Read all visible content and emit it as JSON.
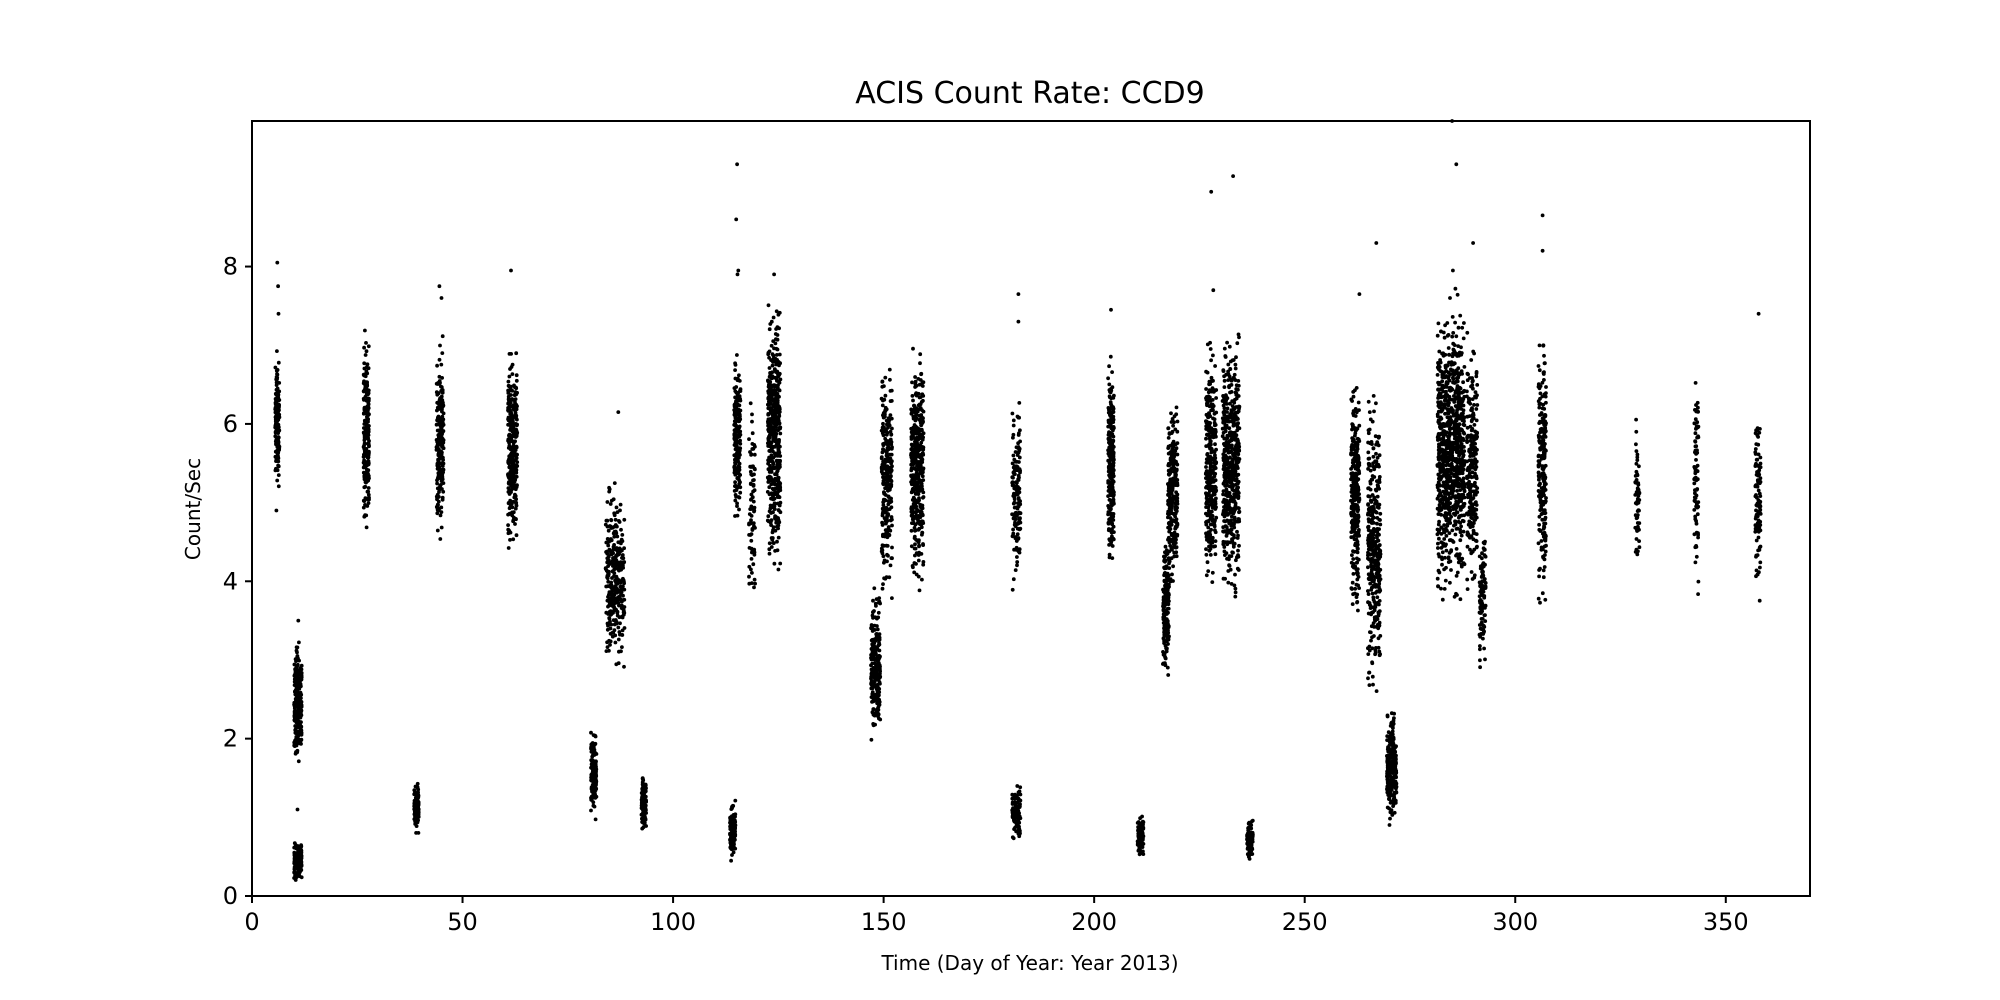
{
  "chart_data": {
    "type": "scatter",
    "title": "ACIS Count Rate: CCD9",
    "xlabel": "Time (Day of Year: Year 2013)",
    "ylabel": "Count/Sec",
    "xlim": [
      0,
      370
    ],
    "ylim": [
      0,
      9.85
    ],
    "xticks": [
      0,
      50,
      100,
      150,
      200,
      250,
      300,
      350
    ],
    "yticks": [
      0,
      2,
      4,
      6,
      8
    ],
    "grid": false,
    "marker_color": "#000000",
    "clusters": [
      {
        "x": [
          5.5,
          6.5
        ],
        "y_range": [
          5.1,
          7.0
        ],
        "points": 160,
        "outliers": [
          [
            6.0,
            8.05
          ],
          [
            6.2,
            7.75
          ],
          [
            5.8,
            4.9
          ],
          [
            6.3,
            7.4
          ]
        ]
      },
      {
        "x": [
          10.0,
          11.8
        ],
        "y_range": [
          1.6,
          3.3
        ],
        "points": 260,
        "outliers": [
          [
            11.0,
            3.5
          ],
          [
            10.8,
            1.1
          ]
        ]
      },
      {
        "x": [
          10.0,
          11.8
        ],
        "y_range": [
          0.15,
          0.75
        ],
        "points": 200,
        "outliers": []
      },
      {
        "x": [
          26.5,
          27.8
        ],
        "y_range": [
          4.3,
          7.4
        ],
        "points": 200,
        "outliers": []
      },
      {
        "x": [
          38.5,
          39.6
        ],
        "y_range": [
          0.75,
          1.5
        ],
        "points": 110,
        "outliers": []
      },
      {
        "x": [
          43.8,
          45.5
        ],
        "y_range": [
          4.3,
          7.2
        ],
        "points": 230,
        "outliers": [
          [
            44.5,
            7.75
          ],
          [
            45.0,
            7.6
          ]
        ]
      },
      {
        "x": [
          60.8,
          63.0
        ],
        "y_range": [
          4.2,
          7.2
        ],
        "points": 320,
        "outliers": [
          [
            61.5,
            7.95
          ]
        ]
      },
      {
        "x": [
          80.5,
          81.8
        ],
        "y_range": [
          0.9,
          2.2
        ],
        "points": 160,
        "outliers": []
      },
      {
        "x": [
          84.0,
          88.5
        ],
        "y_range": [
          2.6,
          5.5
        ],
        "points": 320,
        "outliers": [
          [
            87.0,
            6.15
          ]
        ]
      },
      {
        "x": [
          92.5,
          93.6
        ],
        "y_range": [
          0.75,
          1.6
        ],
        "points": 120,
        "outliers": []
      },
      {
        "x": [
          113.5,
          114.8
        ],
        "y_range": [
          0.4,
          1.3
        ],
        "points": 110,
        "outliers": []
      },
      {
        "x": [
          114.5,
          116.0
        ],
        "y_range": [
          4.6,
          7.1
        ],
        "points": 200,
        "outliers": [
          [
            115.2,
            9.3
          ],
          [
            115.0,
            8.6
          ],
          [
            115.5,
            7.95
          ],
          [
            115.3,
            7.9
          ]
        ]
      },
      {
        "x": [
          118.0,
          119.5
        ],
        "y_range": [
          3.3,
          6.7
        ],
        "points": 80,
        "outliers": []
      },
      {
        "x": [
          122.5,
          125.5
        ],
        "y_range": [
          3.9,
          7.7
        ],
        "points": 480,
        "outliers": [
          [
            124.0,
            7.9
          ]
        ]
      },
      {
        "x": [
          147.0,
          149.2
        ],
        "y_range": [
          1.7,
          4.1
        ],
        "points": 220,
        "outliers": []
      },
      {
        "x": [
          149.5,
          152.0
        ],
        "y_range": [
          3.6,
          7.1
        ],
        "points": 260,
        "outliers": []
      },
      {
        "x": [
          156.5,
          159.5
        ],
        "y_range": [
          3.7,
          7.1
        ],
        "points": 420,
        "outliers": []
      },
      {
        "x": [
          180.5,
          182.5
        ],
        "y_range": [
          3.7,
          6.5
        ],
        "points": 140,
        "outliers": [
          [
            182.0,
            7.65
          ],
          [
            182.0,
            7.3
          ]
        ]
      },
      {
        "x": [
          180.5,
          182.5
        ],
        "y_range": [
          0.6,
          1.5
        ],
        "points": 110,
        "outliers": []
      },
      {
        "x": [
          203.3,
          204.7
        ],
        "y_range": [
          3.9,
          7.1
        ],
        "points": 260,
        "outliers": [
          [
            204.0,
            7.45
          ]
        ]
      },
      {
        "x": [
          210.3,
          211.7
        ],
        "y_range": [
          0.45,
          1.1
        ],
        "points": 90,
        "outliers": []
      },
      {
        "x": [
          216.3,
          217.8
        ],
        "y_range": [
          2.55,
          4.7
        ],
        "points": 180,
        "outliers": []
      },
      {
        "x": [
          217.5,
          219.8
        ],
        "y_range": [
          3.7,
          6.6
        ],
        "points": 260,
        "outliers": []
      },
      {
        "x": [
          226.5,
          229.0
        ],
        "y_range": [
          3.6,
          7.3
        ],
        "points": 320,
        "outliers": [
          [
            227.8,
            8.95
          ],
          [
            228.3,
            7.7
          ]
        ]
      },
      {
        "x": [
          230.5,
          234.5
        ],
        "y_range": [
          3.5,
          7.4
        ],
        "points": 520,
        "outliers": [
          [
            233.0,
            9.15
          ]
        ]
      },
      {
        "x": [
          236.3,
          237.7
        ],
        "y_range": [
          0.4,
          1.05
        ],
        "points": 90,
        "outliers": []
      },
      {
        "x": [
          261.0,
          263.0
        ],
        "y_range": [
          3.3,
          6.9
        ],
        "points": 300,
        "outliers": [
          [
            263.0,
            7.65
          ]
        ]
      },
      {
        "x": [
          265.0,
          268.0
        ],
        "y_range": [
          2.1,
          6.8
        ],
        "points": 360,
        "outliers": [
          [
            267.0,
            8.3
          ]
        ]
      },
      {
        "x": [
          269.5,
          271.8
        ],
        "y_range": [
          0.85,
          2.4
        ],
        "points": 260,
        "outliers": []
      },
      {
        "x": [
          281.5,
          288.0
        ],
        "y_range": [
          3.5,
          7.8
        ],
        "points": 900,
        "outliers": [
          [
            286.0,
            9.3
          ],
          [
            285.0,
            9.85
          ],
          [
            285.2,
            7.95
          ],
          [
            284.5,
            7.6
          ]
        ]
      },
      {
        "x": [
          288.5,
          291.0
        ],
        "y_range": [
          3.5,
          7.3
        ],
        "points": 240,
        "outliers": [
          [
            290.0,
            8.3
          ]
        ]
      },
      {
        "x": [
          291.5,
          293.0
        ],
        "y_range": [
          2.7,
          4.8
        ],
        "points": 100,
        "outliers": []
      },
      {
        "x": [
          305.5,
          307.3
        ],
        "y_range": [
          3.5,
          7.5
        ],
        "points": 240,
        "outliers": [
          [
            306.5,
            8.65
          ],
          [
            306.5,
            8.2
          ]
        ]
      },
      {
        "x": [
          328.5,
          329.5
        ],
        "y_range": [
          3.9,
          6.4
        ],
        "points": 60,
        "outliers": []
      },
      {
        "x": [
          342.5,
          343.5
        ],
        "y_range": [
          3.5,
          7.05
        ],
        "points": 80,
        "outliers": []
      },
      {
        "x": [
          357.0,
          358.3
        ],
        "y_range": [
          3.55,
          6.5
        ],
        "points": 110,
        "outliers": [
          [
            357.8,
            7.4
          ]
        ]
      }
    ]
  }
}
